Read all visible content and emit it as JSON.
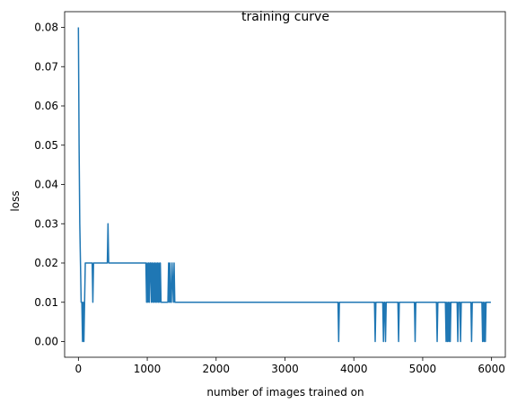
{
  "chart_data": {
    "type": "line",
    "title": "training curve",
    "xlabel": "number of images trained on",
    "ylabel": "loss",
    "xlim": [
      -200,
      6200
    ],
    "ylim": [
      -0.004,
      0.084
    ],
    "xticks": [
      0,
      1000,
      2000,
      3000,
      4000,
      5000,
      6000
    ],
    "xtick_labels": [
      "0",
      "1000",
      "2000",
      "3000",
      "4000",
      "5000",
      "6000"
    ],
    "yticks": [
      0.0,
      0.01,
      0.02,
      0.03,
      0.04,
      0.05,
      0.06,
      0.07,
      0.08
    ],
    "ytick_labels": [
      "0.00",
      "0.01",
      "0.02",
      "0.03",
      "0.04",
      "0.05",
      "0.06",
      "0.07",
      "0.08"
    ],
    "grid": false,
    "line_color": "#1f77b4",
    "series": [
      {
        "x": [
          0,
          10,
          20,
          30,
          40,
          50,
          60,
          70,
          80,
          90,
          100,
          110,
          120,
          200,
          210,
          220,
          420,
          430,
          440,
          980,
          990,
          1000,
          1010,
          1020,
          1030,
          1040,
          1050,
          1060,
          1070,
          1080,
          1090,
          1100,
          1110,
          1120,
          1130,
          1140,
          1150,
          1160,
          1170,
          1180,
          1190,
          1200,
          1210,
          1220,
          1300,
          1310,
          1320,
          1330,
          1340,
          1350,
          1360,
          1380,
          1390,
          1400,
          1410,
          1420,
          3770,
          3780,
          3790,
          4300,
          4310,
          4320,
          4420,
          4430,
          4440,
          4450,
          4460,
          4470,
          4640,
          4650,
          4660,
          4880,
          4890,
          4900,
          5200,
          5210,
          5220,
          5330,
          5340,
          5350,
          5360,
          5370,
          5380,
          5390,
          5400,
          5410,
          5500,
          5510,
          5520,
          5540,
          5550,
          5560,
          5700,
          5710,
          5720,
          5860,
          5870,
          5880,
          5890,
          5900,
          5910,
          5920,
          5930,
          5990
        ],
        "y": [
          0.08,
          0.05,
          0.03,
          0.02,
          0.01,
          0.01,
          0.0,
          0.01,
          0.0,
          0.01,
          0.02,
          0.02,
          0.02,
          0.02,
          0.01,
          0.02,
          0.02,
          0.03,
          0.02,
          0.02,
          0.01,
          0.02,
          0.01,
          0.02,
          0.01,
          0.02,
          0.02,
          0.01,
          0.02,
          0.01,
          0.02,
          0.01,
          0.02,
          0.01,
          0.02,
          0.01,
          0.02,
          0.01,
          0.02,
          0.01,
          0.02,
          0.01,
          0.01,
          0.01,
          0.01,
          0.02,
          0.01,
          0.02,
          0.01,
          0.01,
          0.02,
          0.01,
          0.02,
          0.01,
          0.01,
          0.01,
          0.01,
          0.0,
          0.01,
          0.01,
          0.0,
          0.01,
          0.01,
          0.0,
          0.01,
          0.01,
          0.0,
          0.01,
          0.01,
          0.0,
          0.01,
          0.01,
          0.0,
          0.01,
          0.01,
          0.0,
          0.01,
          0.01,
          0.0,
          0.01,
          0.0,
          0.01,
          0.0,
          0.01,
          0.0,
          0.01,
          0.01,
          0.0,
          0.01,
          0.01,
          0.0,
          0.01,
          0.01,
          0.0,
          0.01,
          0.01,
          0.0,
          0.01,
          0.0,
          0.01,
          0.0,
          0.01,
          0.01,
          0.01
        ]
      }
    ]
  }
}
